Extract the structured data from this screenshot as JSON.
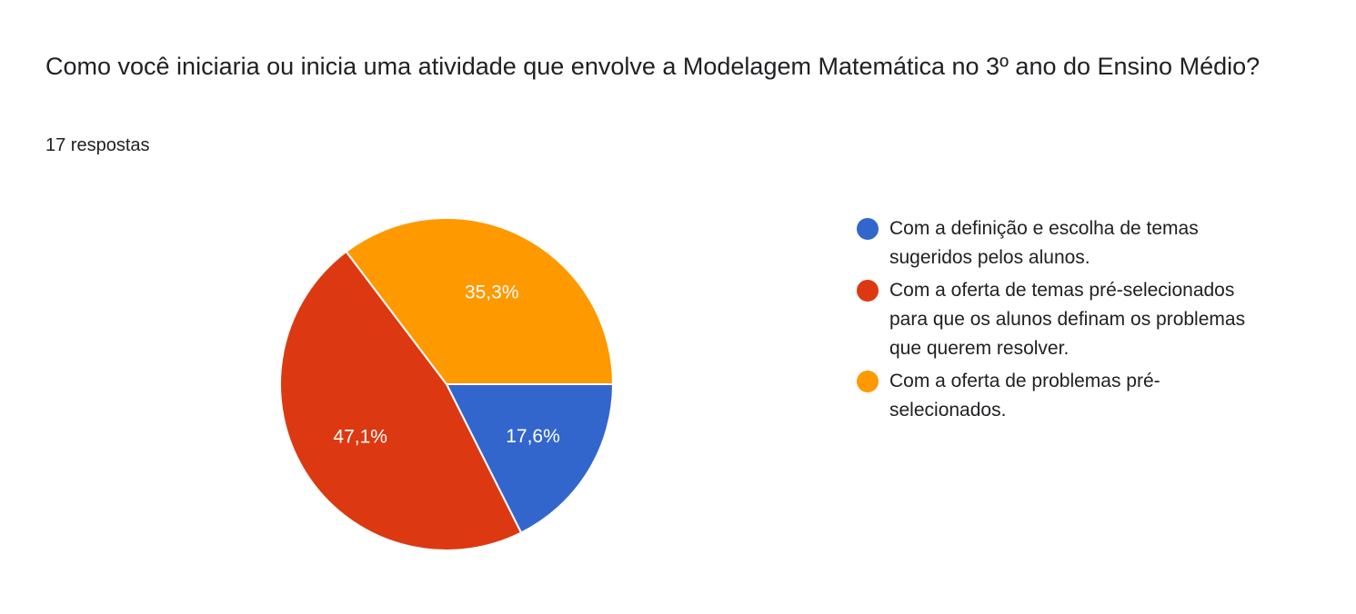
{
  "chart_data": {
    "type": "pie",
    "title": "Como você iniciaria ou inicia uma atividade que envolve a Modelagem Matemática no 3º ano do Ensino Médio?",
    "subtitle": "17 respostas",
    "categories": [
      "Com a definição e escolha de temas sugeridos pelos alunos.",
      "Com a oferta de temas pré-selecionados para que os alunos definam os problemas que querem resolver.",
      "Com a oferta de problemas pré-selecionados."
    ],
    "values": [
      17.6,
      47.1,
      35.3
    ],
    "value_labels": [
      "17,6%",
      "47,1%",
      "35,3%"
    ],
    "colors": [
      "#3366cc",
      "#dc3912",
      "#ff9900"
    ],
    "legend": "right"
  }
}
